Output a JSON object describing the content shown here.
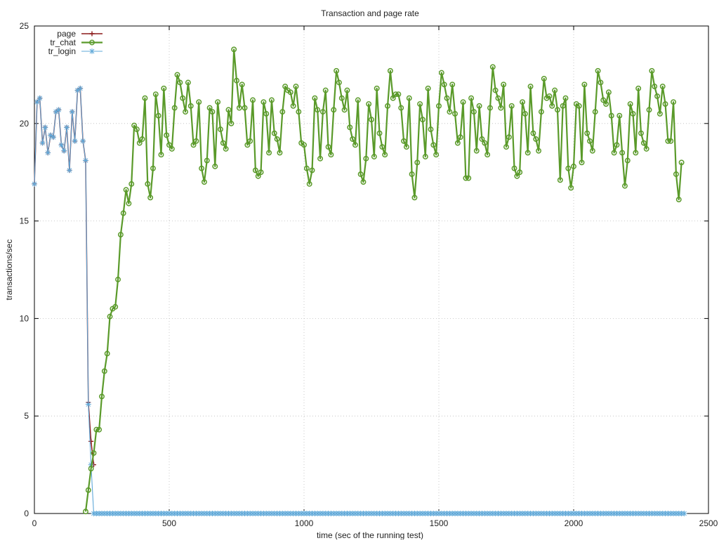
{
  "chart_data": {
    "type": "line",
    "title": "Transaction and page rate",
    "xlabel": "time (sec of the running test)",
    "ylabel": "transactions/sec",
    "xlim": [
      0,
      2500
    ],
    "ylim": [
      0,
      25
    ],
    "x_ticks": [
      0,
      500,
      1000,
      1500,
      2000,
      2500
    ],
    "y_ticks": [
      0,
      5,
      10,
      15,
      20,
      25
    ],
    "x_tick_labels": [
      "0",
      "500",
      "1000",
      "1500",
      "2000",
      "2500"
    ],
    "y_tick_labels": [
      "0",
      "5",
      "10",
      "15",
      "20",
      "25"
    ],
    "grid": true,
    "legend_position": "top-left",
    "x_sampling": {
      "start": 0,
      "step": 10,
      "end": 2450
    },
    "series": [
      {
        "name": "page",
        "color": "#8b1a1a",
        "marker": "plus",
        "x": [
          0,
          10,
          20,
          30,
          40,
          50,
          60,
          70,
          80,
          90,
          100,
          110,
          120,
          130,
          140,
          150,
          160,
          170,
          180,
          190,
          200,
          210,
          220
        ],
        "values": [
          16.9,
          21.1,
          21.3,
          19.0,
          19.8,
          18.5,
          19.4,
          19.3,
          20.6,
          20.7,
          18.9,
          18.6,
          19.8,
          17.6,
          20.6,
          19.1,
          21.7,
          21.8,
          19.1,
          18.1,
          5.7,
          3.7,
          2.5
        ]
      },
      {
        "name": "tr_chat",
        "color": "#5a9a2a",
        "marker": "circle",
        "x_start": 190,
        "x_step": 10,
        "values": [
          0.1,
          1.2,
          2.3,
          3.1,
          4.3,
          4.3,
          6.0,
          7.3,
          8.2,
          10.1,
          10.5,
          10.6,
          12.0,
          14.3,
          15.4,
          16.6,
          15.9,
          16.9,
          19.9,
          19.7,
          19.0,
          19.2,
          21.3,
          16.9,
          16.2,
          17.7,
          21.5,
          20.4,
          18.4,
          21.8,
          19.4,
          18.9,
          18.7,
          20.8,
          22.5,
          22.1,
          21.3,
          20.6,
          22.1,
          20.9,
          18.9,
          19.1,
          21.1,
          17.7,
          17.0,
          18.1,
          20.8,
          20.6,
          17.8,
          21.1,
          19.7,
          19.0,
          18.7,
          20.7,
          20.0,
          23.8,
          22.2,
          20.8,
          22.0,
          20.8,
          18.9,
          19.1,
          21.2,
          17.6,
          17.3,
          17.5,
          21.1,
          20.5,
          18.5,
          21.2,
          19.5,
          19.2,
          18.5,
          20.6,
          21.9,
          21.7,
          21.6,
          20.9,
          21.9,
          20.6,
          19.0,
          18.9,
          17.7,
          16.9,
          17.6,
          21.3,
          20.7,
          18.2,
          20.6,
          21.7,
          18.8,
          18.4,
          20.7,
          22.7,
          22.1,
          21.3,
          20.7,
          21.7,
          19.8,
          19.2,
          18.9,
          21.2,
          17.4,
          17.0,
          18.2,
          21.0,
          20.2,
          18.3,
          21.8,
          19.5,
          18.8,
          18.4,
          20.9,
          22.7,
          21.3,
          21.5,
          21.5,
          20.8,
          19.1,
          18.8,
          21.3,
          17.4,
          16.2,
          18.0,
          21.0,
          20.2,
          18.3,
          21.8,
          19.7,
          18.9,
          18.4,
          20.9,
          22.6,
          22.0,
          21.3,
          20.6,
          22.0,
          20.5,
          19.0,
          19.3,
          21.1,
          17.2,
          17.2,
          21.3,
          20.6,
          18.6,
          20.9,
          19.2,
          19.0,
          18.4,
          20.8,
          22.9,
          21.7,
          21.3,
          20.8,
          22.0,
          18.8,
          19.3,
          20.9,
          17.7,
          17.3,
          17.5,
          21.1,
          20.5,
          18.5,
          21.9,
          19.5,
          19.2,
          18.6,
          20.6,
          22.3,
          21.3,
          21.4,
          20.9,
          21.7,
          20.7,
          17.1,
          20.9,
          21.3,
          17.7,
          16.7,
          17.8,
          21.0,
          20.9,
          18.0,
          22.0,
          19.5,
          19.1,
          18.6,
          20.6,
          22.7,
          22.1,
          21.2,
          21.0,
          21.6,
          20.4,
          18.5,
          18.9,
          20.4,
          18.5,
          16.8,
          18.1,
          21.0,
          20.5,
          18.5,
          21.8,
          19.5,
          19.0,
          18.7,
          20.7,
          22.7,
          21.9,
          21.4,
          20.5,
          21.9,
          21.0,
          19.1,
          19.1,
          21.1,
          17.4,
          16.1,
          18.0
        ]
      },
      {
        "name": "tr_login",
        "color": "#5fa8d8",
        "marker": "star",
        "x_start": 0,
        "x_step": 10,
        "values": [
          16.9,
          21.1,
          21.3,
          19.0,
          19.8,
          18.5,
          19.4,
          19.3,
          20.6,
          20.7,
          18.9,
          18.6,
          19.8,
          17.6,
          20.6,
          19.1,
          21.7,
          21.8,
          19.1,
          18.1,
          5.6,
          2.5,
          0,
          0,
          0,
          0,
          0,
          0,
          0,
          0,
          0,
          0,
          0,
          0,
          0,
          0,
          0,
          0,
          0,
          0,
          0,
          0,
          0,
          0,
          0,
          0,
          0,
          0,
          0,
          0,
          0,
          0,
          0,
          0,
          0,
          0,
          0,
          0,
          0,
          0,
          0,
          0,
          0,
          0,
          0,
          0,
          0,
          0,
          0,
          0,
          0,
          0,
          0,
          0,
          0,
          0,
          0,
          0,
          0,
          0,
          0,
          0,
          0,
          0,
          0,
          0,
          0,
          0,
          0,
          0,
          0,
          0,
          0,
          0,
          0,
          0,
          0,
          0,
          0,
          0,
          0,
          0,
          0,
          0,
          0,
          0,
          0,
          0,
          0,
          0,
          0,
          0,
          0,
          0,
          0,
          0,
          0,
          0,
          0,
          0,
          0,
          0,
          0,
          0,
          0,
          0,
          0,
          0,
          0,
          0,
          0,
          0,
          0,
          0,
          0,
          0,
          0,
          0,
          0,
          0,
          0,
          0,
          0,
          0,
          0,
          0,
          0,
          0,
          0,
          0,
          0,
          0,
          0,
          0,
          0,
          0,
          0,
          0,
          0,
          0,
          0,
          0,
          0,
          0,
          0,
          0,
          0,
          0,
          0,
          0,
          0,
          0,
          0,
          0,
          0,
          0,
          0,
          0,
          0,
          0,
          0,
          0,
          0,
          0,
          0,
          0,
          0,
          0,
          0,
          0,
          0,
          0,
          0,
          0,
          0,
          0,
          0,
          0,
          0,
          0,
          0,
          0,
          0,
          0,
          0,
          0,
          0,
          0,
          0,
          0,
          0,
          0,
          0,
          0,
          0,
          0,
          0,
          0,
          0,
          0,
          0,
          0,
          0,
          0,
          0,
          0,
          0,
          0,
          0,
          0,
          0,
          0,
          0,
          0,
          0,
          0,
          0,
          0,
          0,
          0,
          0,
          0
        ]
      }
    ]
  }
}
